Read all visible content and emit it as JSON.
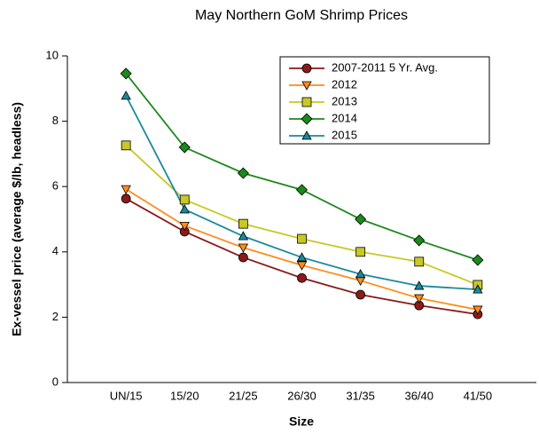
{
  "chart_data": {
    "type": "line",
    "title": "May Northern GoM Shrimp Prices",
    "x_label": "Size",
    "y_label": "Ex-vessel price (average $/lb, headless)",
    "categories": [
      "UN/15",
      "15/20",
      "21/25",
      "26/30",
      "31/35",
      "36/40",
      "41/50"
    ],
    "series": [
      {
        "name": "2007-2011 5 Yr. Avg.",
        "color": "#8b1a1a",
        "marker": "circle",
        "values": [
          5.63,
          4.62,
          3.83,
          3.2,
          2.69,
          2.36,
          2.09
        ]
      },
      {
        "name": "2012",
        "color": "#ff8c1a",
        "marker": "triangle-down",
        "values": [
          5.92,
          4.8,
          4.13,
          3.59,
          3.12,
          2.58,
          2.23
        ]
      },
      {
        "name": "2013",
        "color": "#c8c826",
        "marker": "square",
        "values": [
          7.26,
          5.6,
          4.86,
          4.4,
          4.0,
          3.7,
          2.99
        ]
      },
      {
        "name": "2014",
        "color": "#1a8a1a",
        "marker": "diamond",
        "values": [
          9.46,
          7.2,
          6.41,
          5.9,
          5.0,
          4.35,
          3.75
        ]
      },
      {
        "name": "2015",
        "color": "#1a8a9a",
        "marker": "triangle-up",
        "values": [
          8.78,
          5.3,
          4.48,
          3.83,
          3.32,
          2.96,
          2.85
        ]
      }
    ],
    "ylim": [
      0,
      10
    ],
    "yticks": [
      0,
      2,
      4,
      6,
      8,
      10
    ],
    "legend": "upper right"
  }
}
